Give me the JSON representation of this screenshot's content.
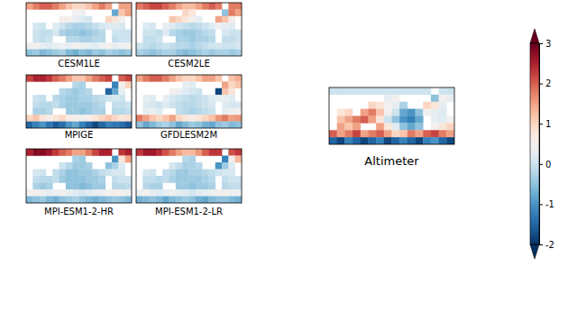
{
  "chart_data": {
    "type": "heatmap",
    "color_range": [
      -2,
      3
    ],
    "color_ticks": [
      -2,
      -1,
      0,
      1,
      2,
      3
    ],
    "panels": [
      {
        "title": "CESM1LE",
        "cells": [
          [
            1.5,
            1.8,
            2,
            2,
            1.8,
            1.5,
            1.2,
            1,
            1,
            1.2,
            1.5,
            1.8,
            1.5,
            null,
            1.5,
            1.5
          ],
          [
            null,
            null,
            null,
            null,
            null,
            null,
            null,
            0.5,
            0.4,
            null,
            null,
            null,
            null,
            -0.8,
            1.2,
            1.5
          ],
          [
            null,
            null,
            null,
            null,
            null,
            0.6,
            0.5,
            0.3,
            0.2,
            0.1,
            null,
            null,
            1.0,
            0.8,
            0.5,
            null
          ],
          [
            null,
            0.1,
            0,
            null,
            0.2,
            0,
            -0.2,
            -0.3,
            -0.3,
            -0.2,
            -0.1,
            0.1,
            0.2,
            0.2,
            0.1,
            null
          ],
          [
            null,
            0,
            -0.1,
            -0.1,
            0.1,
            -0.3,
            -0.4,
            -0.4,
            -0.5,
            -0.4,
            -0.3,
            -0.2,
            null,
            0,
            0,
            0
          ],
          [
            null,
            0,
            -0.1,
            0,
            null,
            null,
            -0.2,
            -0.2,
            -0.3,
            -0.3,
            -0.2,
            -0.2,
            null,
            -0.1,
            0,
            0
          ],
          [
            0.4,
            0.5,
            0.3,
            0.2,
            0.3,
            0.4,
            0.3,
            0.5,
            0.4,
            0.3,
            0.2,
            0.4,
            0.5,
            0.3,
            0.4,
            0.5
          ],
          [
            -0.5,
            -0.4,
            -0.6,
            -0.5,
            -0.4,
            -0.3,
            -0.6,
            -0.7,
            -0.5,
            -0.6,
            -0.4,
            -0.5,
            -0.3,
            -0.4,
            -0.5,
            -0.4
          ]
        ]
      },
      {
        "title": "CESM2LE",
        "cells": [
          [
            1.8,
            2,
            2.2,
            2.2,
            2,
            1.8,
            1.5,
            1.3,
            1.3,
            1.5,
            1.8,
            2,
            1.8,
            null,
            1.8,
            1.8
          ],
          [
            null,
            null,
            null,
            null,
            null,
            null,
            null,
            1.0,
            0.8,
            null,
            null,
            null,
            null,
            -0.5,
            1.8,
            1.5
          ],
          [
            null,
            null,
            null,
            null,
            null,
            1.2,
            1.0,
            0.8,
            0.5,
            0.3,
            null,
            null,
            1.5,
            1.2,
            0.6,
            null
          ],
          [
            null,
            0.2,
            0.1,
            null,
            0.3,
            0.2,
            0,
            -0.1,
            -0.2,
            -0.1,
            0,
            0.2,
            0.4,
            0.3,
            0.2,
            null
          ],
          [
            null,
            0,
            0,
            -0.1,
            0.2,
            -0.2,
            -0.3,
            -0.4,
            -0.4,
            -0.3,
            -0.2,
            -0.1,
            null,
            0.1,
            0,
            0
          ],
          [
            null,
            -0.1,
            -0.1,
            0,
            null,
            null,
            -0.3,
            -0.3,
            -0.4,
            -0.3,
            -0.3,
            -0.2,
            null,
            -0.1,
            -0.1,
            0
          ],
          [
            0,
            -0.1,
            -0.2,
            -0.1,
            0,
            -0.1,
            -0.2,
            -0.2,
            -0.3,
            -0.2,
            -0.1,
            0,
            0.1,
            0,
            0,
            0.1
          ],
          [
            -0.3,
            -0.4,
            -0.5,
            -0.4,
            -0.3,
            -0.3,
            -0.5,
            -0.6,
            -0.5,
            -0.4,
            -0.3,
            -0.4,
            -0.3,
            -0.3,
            -0.4,
            -0.3
          ]
        ]
      },
      {
        "title": "MPIGE",
        "cells": [
          [
            2.2,
            2.5,
            2.5,
            2.3,
            2,
            1.8,
            1.5,
            1.2,
            1.2,
            1.5,
            1.8,
            2,
            2.2,
            null,
            2,
            2.2
          ],
          [
            null,
            null,
            null,
            null,
            null,
            null,
            null,
            -0.2,
            -0.3,
            null,
            null,
            null,
            null,
            -1.2,
            0.5,
            1.0
          ],
          [
            null,
            null,
            null,
            null,
            null,
            -0.2,
            -0.3,
            -0.4,
            -0.3,
            -0.2,
            null,
            null,
            -1.5,
            -0.8,
            0.3,
            null
          ],
          [
            null,
            0,
            -0.1,
            null,
            -0.2,
            -0.3,
            -0.4,
            -0.4,
            -0.3,
            -0.3,
            -0.2,
            -0.1,
            0,
            0.1,
            0,
            null
          ],
          [
            null,
            -0.1,
            -0.2,
            -0.2,
            -0.1,
            -0.3,
            -0.4,
            -0.4,
            -0.4,
            -0.4,
            -0.3,
            -0.2,
            null,
            -0.1,
            -0.1,
            0
          ],
          [
            null,
            -0.3,
            -0.3,
            -0.2,
            null,
            null,
            -0.4,
            -0.4,
            -0.5,
            -0.4,
            -0.3,
            -0.3,
            null,
            -0.2,
            -0.2,
            -0.1
          ],
          [
            1.0,
            1.2,
            0.8,
            0.6,
            0.8,
            1.0,
            0.7,
            0.6,
            0.5,
            0.6,
            0.8,
            1.0,
            1.2,
            1.0,
            0.8,
            0.9
          ],
          [
            -1.5,
            -1.2,
            -1.0,
            -1.3,
            -1.6,
            -1.4,
            -1.0,
            -0.8,
            -1.2,
            -1.5,
            -1.8,
            -1.5,
            -1.2,
            -1.3,
            -1.4,
            -1.6
          ]
        ]
      },
      {
        "title": "GFDLESM2M",
        "cells": [
          [
            1.5,
            1.8,
            2,
            2,
            1.8,
            1.5,
            1.2,
            1,
            1,
            1.2,
            1.5,
            1.5,
            1.2,
            null,
            1.2,
            1.4
          ],
          [
            null,
            null,
            null,
            null,
            null,
            null,
            null,
            0.3,
            0.2,
            null,
            null,
            null,
            null,
            1.5,
            1.0,
            1.2
          ],
          [
            null,
            null,
            null,
            null,
            null,
            0.5,
            0.4,
            0.2,
            0.1,
            0,
            null,
            null,
            -1.8,
            1.2,
            0.8,
            null
          ],
          [
            null,
            0.3,
            0.2,
            null,
            0.3,
            0.1,
            0,
            -0.1,
            -0.2,
            -0.1,
            0,
            0.2,
            0.3,
            0.3,
            0.2,
            null
          ],
          [
            null,
            0.2,
            0.1,
            0,
            0.2,
            0,
            -0.1,
            -0.2,
            -0.2,
            -0.1,
            0,
            0.1,
            null,
            0.2,
            0.1,
            0.1
          ],
          [
            null,
            0.3,
            0.4,
            0.2,
            null,
            null,
            -0.1,
            -0.2,
            -0.3,
            -0.2,
            -0.1,
            0,
            null,
            0.3,
            0.4,
            0.5
          ],
          [
            1.8,
            1.5,
            1.2,
            1.0,
            1.2,
            1.5,
            1.0,
            0.8,
            0.6,
            0.8,
            1.0,
            1.2,
            1.6,
            1.8,
            1.5,
            1.6
          ],
          [
            -0.5,
            -0.8,
            -0.6,
            -0.4,
            -0.3,
            -0.5,
            -0.8,
            -0.6,
            -0.4,
            -0.5,
            -0.7,
            -0.8,
            -0.5,
            -0.4,
            -0.6,
            -0.5
          ]
        ]
      },
      {
        "title": "MPI-ESM1-2-HR",
        "cells": [
          [
            2.5,
            2.8,
            2.8,
            2.6,
            2.3,
            2,
            1.8,
            1.5,
            1.5,
            1.8,
            2.2,
            2.5,
            2.5,
            null,
            2.3,
            2.5
          ],
          [
            null,
            null,
            null,
            null,
            null,
            null,
            null,
            -0.3,
            -0.4,
            null,
            null,
            null,
            null,
            -1.0,
            0.8,
            1.5
          ],
          [
            null,
            null,
            null,
            null,
            null,
            0,
            -0.2,
            -0.4,
            -0.4,
            -0.3,
            null,
            null,
            -0.5,
            -0.3,
            0.2,
            null
          ],
          [
            null,
            0.1,
            0,
            null,
            -0.1,
            -0.3,
            -0.5,
            -0.5,
            -0.4,
            -0.4,
            -0.3,
            -0.1,
            0,
            0.1,
            0.1,
            null
          ],
          [
            null,
            -0.1,
            -0.2,
            -0.2,
            -0.1,
            -0.4,
            -0.5,
            -0.5,
            -0.5,
            -0.4,
            -0.4,
            -0.3,
            null,
            -0.1,
            0,
            0
          ],
          [
            null,
            -0.3,
            -0.4,
            -0.3,
            null,
            null,
            -0.5,
            -0.5,
            -0.6,
            -0.5,
            -0.4,
            -0.4,
            null,
            -0.2,
            -0.2,
            -0.1
          ],
          [
            0.5,
            0.6,
            0.4,
            0.3,
            0.4,
            0.5,
            0.3,
            0.2,
            0.1,
            0.2,
            0.3,
            0.4,
            0.5,
            0.6,
            0.5,
            0.4
          ],
          [
            -0.6,
            -0.5,
            -0.4,
            -0.6,
            -0.7,
            -0.5,
            -0.4,
            -0.3,
            -0.5,
            -0.6,
            -0.7,
            -0.6,
            -0.5,
            -0.4,
            -0.5,
            -0.6
          ]
        ]
      },
      {
        "title": "MPI-ESM1-2-LR",
        "cells": [
          [
            2.3,
            2.6,
            2.6,
            2.4,
            2.1,
            1.8,
            1.5,
            1.3,
            1.3,
            1.6,
            2,
            2.3,
            2.3,
            null,
            2.1,
            2.3
          ],
          [
            null,
            null,
            null,
            null,
            null,
            null,
            null,
            -0.2,
            -0.3,
            null,
            null,
            null,
            null,
            -1.2,
            0.6,
            1.3
          ],
          [
            null,
            null,
            null,
            null,
            null,
            0.1,
            -0.1,
            -0.3,
            -0.3,
            -0.2,
            null,
            null,
            -1.0,
            -0.4,
            0.2,
            null
          ],
          [
            null,
            0.1,
            0,
            null,
            -0.1,
            -0.2,
            -0.4,
            -0.4,
            -0.3,
            -0.3,
            -0.2,
            -0.1,
            0,
            0.1,
            0.1,
            null
          ],
          [
            null,
            -0.1,
            -0.1,
            -0.2,
            -0.1,
            -0.3,
            -0.4,
            -0.4,
            -0.4,
            -0.4,
            -0.3,
            -0.2,
            null,
            -0.1,
            0,
            0
          ],
          [
            null,
            -0.2,
            -0.3,
            -0.3,
            null,
            null,
            -0.4,
            -0.4,
            -0.5,
            -0.4,
            -0.4,
            -0.3,
            null,
            -0.2,
            -0.1,
            -0.1
          ],
          [
            0.4,
            0.5,
            0.3,
            0.2,
            0.3,
            0.4,
            0.3,
            0.2,
            0.1,
            0.2,
            0.3,
            0.4,
            0.5,
            0.5,
            0.4,
            0.4
          ],
          [
            -0.7,
            -0.6,
            -0.5,
            -0.6,
            -0.8,
            -0.6,
            -0.5,
            -0.4,
            -0.5,
            -0.7,
            -0.8,
            -0.6,
            -0.5,
            -0.5,
            -0.6,
            -0.7
          ]
        ]
      },
      {
        "title": "Altimeter",
        "cells": [
          [
            0,
            0,
            0,
            0,
            0,
            0,
            0,
            0,
            0,
            0,
            0,
            0,
            0,
            null,
            0,
            0
          ],
          [
            null,
            null,
            null,
            null,
            null,
            null,
            null,
            0.3,
            0.5,
            null,
            null,
            null,
            null,
            -0.5,
            0.5,
            0.3
          ],
          [
            null,
            null,
            null,
            null,
            null,
            1.0,
            0.8,
            0.5,
            0.3,
            -0.3,
            null,
            null,
            1.0,
            0.8,
            0.3,
            null
          ],
          [
            null,
            0.8,
            1.0,
            null,
            1.5,
            1.8,
            1.2,
            0.5,
            0,
            -0.8,
            -1.0,
            -0.5,
            0.5,
            0.3,
            0.2,
            null
          ],
          [
            null,
            1.2,
            1.5,
            1.8,
            2.0,
            1.5,
            0.8,
            0,
            -0.5,
            -1.0,
            -1.2,
            -0.8,
            null,
            0.3,
            0.2,
            0.5
          ],
          [
            null,
            1.5,
            1.2,
            1.5,
            null,
            null,
            1.5,
            0.8,
            0.2,
            -0.5,
            -0.8,
            -0.5,
            null,
            0.5,
            0.8,
            1.0
          ],
          [
            2.0,
            1.5,
            1.8,
            2.2,
            1.5,
            1.8,
            2.0,
            1.5,
            1.0,
            1.2,
            1.8,
            1.5,
            2.0,
            2.2,
            1.8,
            1.5
          ],
          [
            -1.5,
            -1.8,
            -1.2,
            -1.5,
            -1.8,
            -1.5,
            -1.2,
            -1.8,
            -1.5,
            -1.2,
            -1.5,
            -1.8,
            -1.2,
            -1.0,
            -1.5,
            -1.8
          ]
        ]
      }
    ]
  }
}
